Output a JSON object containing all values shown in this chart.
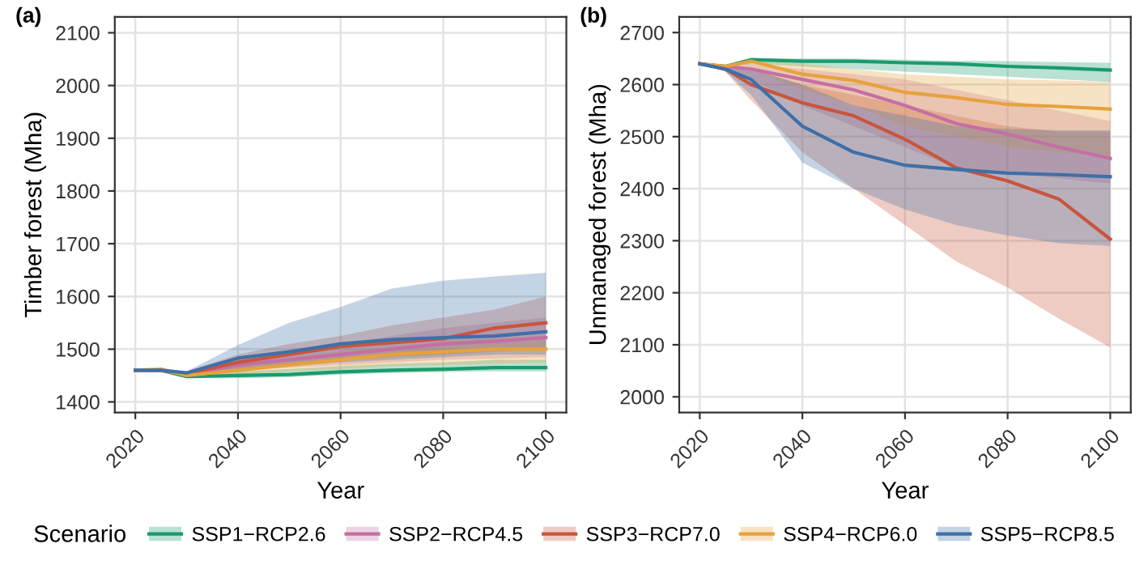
{
  "chart_data": [
    {
      "type": "line",
      "title": "(a)",
      "xlabel": "Year",
      "ylabel": "Timber forest (Mha)",
      "legend_title": "Scenario",
      "legend": "bottom",
      "grid": true,
      "x": [
        2020,
        2025,
        2030,
        2040,
        2050,
        2060,
        2070,
        2080,
        2090,
        2100
      ],
      "xlim": [
        2016,
        2104
      ],
      "xticks": [
        2020,
        2040,
        2060,
        2080,
        2100
      ],
      "ylim": [
        1380,
        2130
      ],
      "yticks": [
        1400,
        1500,
        1600,
        1700,
        1800,
        1900,
        2000,
        2100
      ],
      "series": [
        {
          "name": "SSP1−RCP2.6",
          "color": "#1a9b6c",
          "values": [
            1460,
            1460,
            1448,
            1450,
            1452,
            1457,
            1460,
            1462,
            1465,
            1465
          ],
          "lower": [
            1460,
            1460,
            1445,
            1445,
            1447,
            1452,
            1455,
            1457,
            1458,
            1458
          ],
          "upper": [
            1460,
            1460,
            1450,
            1458,
            1462,
            1468,
            1472,
            1475,
            1480,
            1480
          ]
        },
        {
          "name": "SSP2−RCP4.5",
          "color": "#c46fa5",
          "values": [
            1460,
            1460,
            1452,
            1470,
            1480,
            1490,
            1500,
            1510,
            1515,
            1522
          ],
          "lower": [
            1460,
            1460,
            1448,
            1460,
            1465,
            1470,
            1475,
            1480,
            1482,
            1485
          ],
          "upper": [
            1460,
            1460,
            1455,
            1480,
            1495,
            1510,
            1525,
            1540,
            1550,
            1560
          ]
        },
        {
          "name": "SSP3−RCP7.0",
          "color": "#c8553d",
          "values": [
            1460,
            1460,
            1453,
            1475,
            1490,
            1505,
            1512,
            1520,
            1540,
            1550
          ],
          "lower": [
            1460,
            1460,
            1448,
            1462,
            1470,
            1478,
            1485,
            1490,
            1495,
            1500
          ],
          "upper": [
            1460,
            1460,
            1458,
            1490,
            1510,
            1525,
            1545,
            1560,
            1575,
            1600
          ]
        },
        {
          "name": "SSP4−RCP6.0",
          "color": "#e6a23c",
          "values": [
            1460,
            1462,
            1450,
            1460,
            1470,
            1480,
            1490,
            1495,
            1500,
            1500
          ],
          "lower": [
            1460,
            1460,
            1447,
            1452,
            1458,
            1462,
            1468,
            1470,
            1472,
            1475
          ],
          "upper": [
            1460,
            1465,
            1455,
            1470,
            1485,
            1495,
            1505,
            1515,
            1520,
            1525
          ]
        },
        {
          "name": "SSP5−RCP8.5",
          "color": "#3f6fa8",
          "values": [
            1460,
            1460,
            1455,
            1483,
            1495,
            1510,
            1518,
            1522,
            1525,
            1533
          ],
          "lower": [
            1460,
            1460,
            1450,
            1462,
            1468,
            1475,
            1480,
            1485,
            1490,
            1490
          ],
          "upper": [
            1460,
            1460,
            1458,
            1508,
            1550,
            1580,
            1615,
            1630,
            1638,
            1645
          ]
        }
      ]
    },
    {
      "type": "line",
      "title": "(b)",
      "xlabel": "Year",
      "ylabel": "Unmanaged forest (Mha)",
      "grid": true,
      "x": [
        2020,
        2025,
        2030,
        2040,
        2050,
        2060,
        2070,
        2080,
        2090,
        2100
      ],
      "xlim": [
        2016,
        2104
      ],
      "xticks": [
        2020,
        2040,
        2060,
        2080,
        2100
      ],
      "ylim": [
        1970,
        2730
      ],
      "yticks": [
        2000,
        2100,
        2200,
        2300,
        2400,
        2500,
        2600,
        2700
      ],
      "series": [
        {
          "color": "#1a9b6c",
          "values": [
            2640,
            2635,
            2648,
            2645,
            2645,
            2642,
            2640,
            2635,
            2632,
            2628
          ],
          "lower": [
            2640,
            2635,
            2640,
            2635,
            2630,
            2625,
            2620,
            2615,
            2610,
            2605
          ],
          "upper": [
            2640,
            2635,
            2650,
            2650,
            2650,
            2648,
            2646,
            2645,
            2643,
            2642
          ]
        },
        {
          "color": "#c46fa5",
          "values": [
            2640,
            2635,
            2630,
            2610,
            2590,
            2560,
            2525,
            2505,
            2480,
            2458
          ],
          "lower": [
            2640,
            2630,
            2610,
            2560,
            2520,
            2480,
            2440,
            2430,
            2420,
            2410
          ],
          "upper": [
            2640,
            2638,
            2640,
            2630,
            2620,
            2610,
            2590,
            2570,
            2550,
            2530
          ]
        },
        {
          "color": "#c8553d",
          "values": [
            2640,
            2630,
            2600,
            2565,
            2540,
            2495,
            2440,
            2415,
            2380,
            2303
          ],
          "lower": [
            2640,
            2625,
            2570,
            2470,
            2400,
            2330,
            2260,
            2210,
            2150,
            2095
          ],
          "upper": [
            2640,
            2638,
            2630,
            2600,
            2580,
            2560,
            2540,
            2520,
            2510,
            2510
          ]
        },
        {
          "color": "#e6a23c",
          "values": [
            2640,
            2635,
            2645,
            2620,
            2608,
            2585,
            2575,
            2562,
            2558,
            2553
          ],
          "lower": [
            2640,
            2632,
            2630,
            2590,
            2560,
            2520,
            2500,
            2480,
            2470,
            2460
          ],
          "upper": [
            2640,
            2638,
            2648,
            2640,
            2630,
            2620,
            2615,
            2610,
            2608,
            2605
          ]
        },
        {
          "color": "#3f6fa8",
          "values": [
            2640,
            2630,
            2610,
            2520,
            2470,
            2445,
            2437,
            2430,
            2427,
            2423
          ],
          "lower": [
            2640,
            2625,
            2580,
            2450,
            2400,
            2360,
            2330,
            2310,
            2295,
            2290
          ],
          "upper": [
            2640,
            2638,
            2630,
            2600,
            2560,
            2540,
            2520,
            2515,
            2512,
            2512
          ]
        }
      ]
    }
  ]
}
